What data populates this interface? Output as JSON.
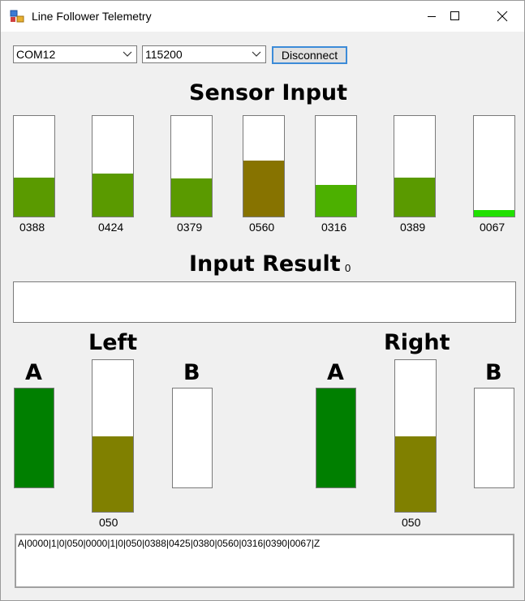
{
  "window": {
    "title": "Line Follower Telemetry"
  },
  "toolbar": {
    "port": "COM12",
    "baud": "115200",
    "disconnect_label": "Disconnect"
  },
  "sensor": {
    "heading": "Sensor Input",
    "full_scale": 1000,
    "channels": [
      {
        "label": "0388",
        "value": 388,
        "color": "#5a9a00"
      },
      {
        "label": "0424",
        "value": 424,
        "color": "#5a9a00"
      },
      {
        "label": "0379",
        "value": 379,
        "color": "#5a9a00"
      },
      {
        "label": "0560",
        "value": 560,
        "color": "#877300"
      },
      {
        "label": "0316",
        "value": 316,
        "color": "#4cb000"
      },
      {
        "label": "0389",
        "value": 389,
        "color": "#5a9a00"
      },
      {
        "label": "0067",
        "value": 67,
        "color": "#20e000"
      }
    ]
  },
  "result": {
    "heading": "Input Result",
    "value": "0"
  },
  "motors": {
    "left": {
      "heading": "Left",
      "a_label": "A",
      "b_label": "B",
      "a_on": true,
      "b_on": false,
      "speed": "050",
      "speed_fraction": 0.5
    },
    "right": {
      "heading": "Right",
      "a_label": "A",
      "b_label": "B",
      "a_on": true,
      "b_on": false,
      "speed": "050",
      "speed_fraction": 0.5
    },
    "direction_color": "#007f00",
    "speed_color": "#808000"
  },
  "log": {
    "text": "A|0000|1|0|050|0000|1|0|050|0388|0425|0380|0560|0316|0390|0067|Z"
  }
}
